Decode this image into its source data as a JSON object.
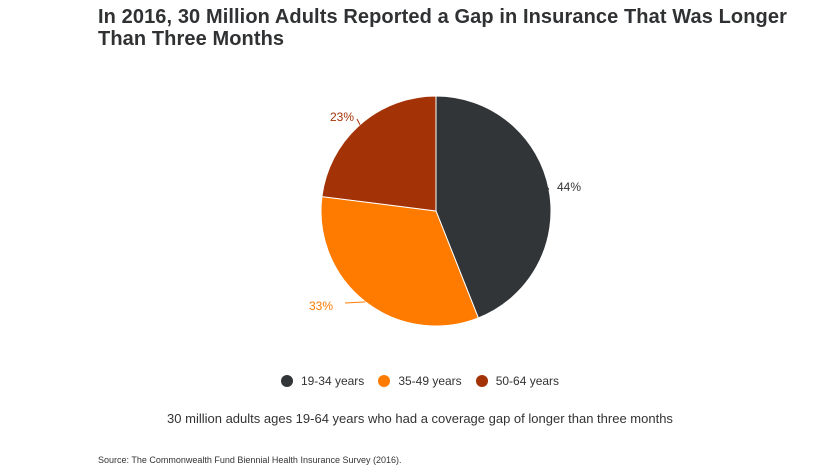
{
  "title": "In 2016, 30 Million Adults Reported a Gap in Insurance That Was Longer Than Three Months",
  "caption": "30 million adults ages 19-64 years who had a coverage gap of longer than three months",
  "source": "Source: The Commonwealth Fund Biennial Health Insurance Survey (2016).",
  "chart_data": {
    "type": "pie",
    "title": "In 2016, 30 Million Adults Reported a Gap in Insurance That Was Longer Than Three Months",
    "categories": [
      "19-34 years",
      "35-49 years",
      "50-64 years"
    ],
    "values": [
      44,
      33,
      23
    ],
    "labels": [
      "44%",
      "33%",
      "23%"
    ],
    "colors": [
      "#323538",
      "#ff7b00",
      "#a33306"
    ],
    "legend_position": "bottom"
  }
}
